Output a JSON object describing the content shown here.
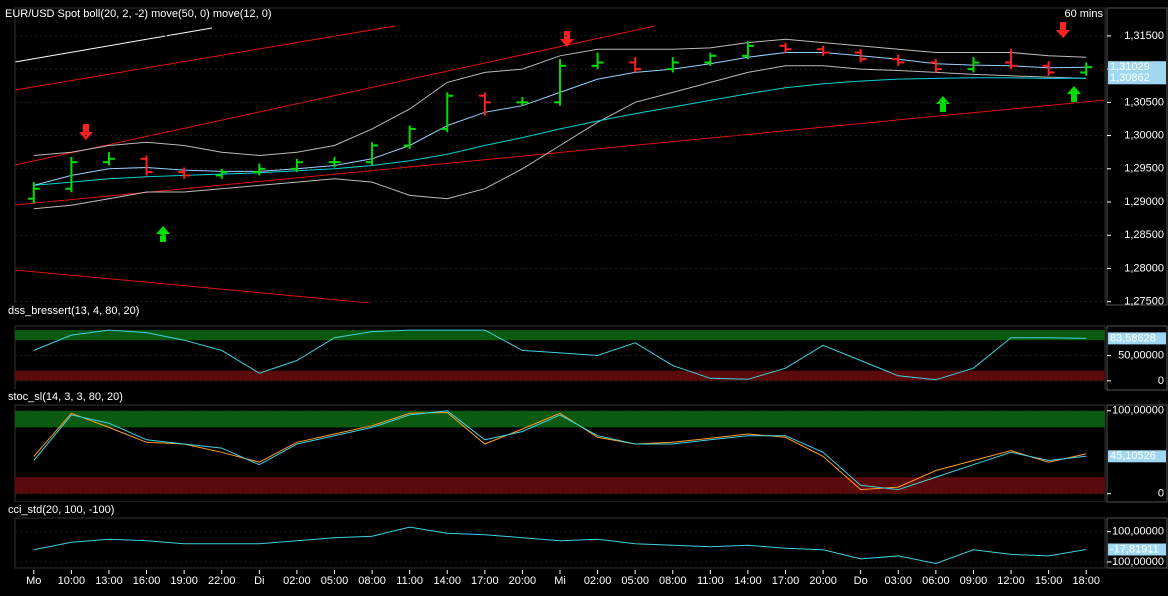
{
  "chart_data": [
    {
      "type": "ohlc",
      "title": "EUR/USD Spot boll(20, 2, -2) move(50, 0) move(12, 0)",
      "subtitle": "60 mins",
      "categories": [
        "Mo",
        "10:00",
        "13:00",
        "16:00",
        "19:00",
        "22:00",
        "Di",
        "02:00",
        "05:00",
        "08:00",
        "11:00",
        "14:00",
        "17:00",
        "20:00",
        "Mi",
        "02:00",
        "05:00",
        "08:00",
        "11:00",
        "14:00",
        "17:00",
        "20:00",
        "Do",
        "03:00",
        "06:00",
        "09:00",
        "12:00",
        "15:00",
        "18:00"
      ],
      "open": [
        1.2905,
        1.292,
        1.296,
        1.2965,
        1.2945,
        1.294,
        1.2945,
        1.295,
        1.296,
        1.296,
        1.2985,
        1.301,
        1.306,
        1.305,
        1.305,
        1.3105,
        1.311,
        1.31,
        1.311,
        1.312,
        1.3135,
        1.313,
        1.3125,
        1.3115,
        1.311,
        1.31,
        1.311,
        1.3105,
        1.3095
      ],
      "high": [
        1.293,
        1.2968,
        1.2975,
        1.297,
        1.2952,
        1.295,
        1.2958,
        1.2965,
        1.2968,
        1.299,
        1.3015,
        1.3065,
        1.3065,
        1.3058,
        1.3115,
        1.3125,
        1.3118,
        1.3118,
        1.3125,
        1.3142,
        1.314,
        1.3135,
        1.313,
        1.3122,
        1.3115,
        1.3118,
        1.313,
        1.3112,
        1.311
      ],
      "low": [
        1.2898,
        1.2915,
        1.2955,
        1.294,
        1.2935,
        1.2935,
        1.294,
        1.2945,
        1.2952,
        1.2955,
        1.298,
        1.3005,
        1.303,
        1.3045,
        1.3045,
        1.31,
        1.3095,
        1.3095,
        1.3105,
        1.3115,
        1.3125,
        1.312,
        1.311,
        1.3105,
        1.3095,
        1.3095,
        1.31,
        1.309,
        1.309
      ],
      "close": [
        1.292,
        1.296,
        1.2965,
        1.2945,
        1.294,
        1.2945,
        1.295,
        1.296,
        1.296,
        1.2985,
        1.301,
        1.306,
        1.305,
        1.305,
        1.3105,
        1.311,
        1.31,
        1.311,
        1.312,
        1.3135,
        1.313,
        1.3125,
        1.3115,
        1.311,
        1.31,
        1.311,
        1.3105,
        1.3095,
        1.3103
      ],
      "overlays": [
        {
          "color": "#bbbbbb",
          "values": [
            1.297,
            1.2975,
            1.2985,
            1.299,
            1.2985,
            1.2975,
            1.297,
            1.2975,
            1.2985,
            1.301,
            1.304,
            1.308,
            1.3095,
            1.31,
            1.312,
            1.313,
            1.313,
            1.313,
            1.3132,
            1.314,
            1.3145,
            1.314,
            1.3135,
            1.313,
            1.3125,
            1.3125,
            1.3125,
            1.312,
            1.3118
          ]
        },
        {
          "color": "#bbbbbb",
          "values": [
            1.289,
            1.2895,
            1.2905,
            1.2915,
            1.2915,
            1.292,
            1.2925,
            1.293,
            1.2935,
            1.293,
            1.291,
            1.2905,
            1.292,
            1.295,
            1.2985,
            1.302,
            1.305,
            1.3065,
            1.308,
            1.3095,
            1.3105,
            1.3105,
            1.31,
            1.3098,
            1.3095,
            1.3092,
            1.309,
            1.3088,
            1.3086
          ]
        },
        {
          "color": "#00d0d0",
          "values": [
            1.2925,
            1.293,
            1.2935,
            1.2938,
            1.294,
            1.2942,
            1.2944,
            1.2947,
            1.295,
            1.2955,
            1.2962,
            1.2972,
            1.2985,
            1.2997,
            1.301,
            1.3022,
            1.3033,
            1.3043,
            1.3053,
            1.3063,
            1.3072,
            1.3078,
            1.3082,
            1.3085,
            1.3086,
            1.3087,
            1.3087,
            1.3086,
            1.30862
          ]
        },
        {
          "color": "#9ad0ff",
          "values": [
            1.2925,
            1.294,
            1.295,
            1.2952,
            1.2948,
            1.2946,
            1.2946,
            1.295,
            1.2955,
            1.2965,
            1.2985,
            1.3015,
            1.3035,
            1.3045,
            1.3065,
            1.3085,
            1.3095,
            1.31,
            1.3108,
            1.3118,
            1.3125,
            1.3125,
            1.312,
            1.3115,
            1.3108,
            1.3106,
            1.3105,
            1.3102,
            1.31029
          ]
        }
      ],
      "last_labels": [
        {
          "value": 1.31029,
          "label": "1,31029"
        },
        {
          "value": 1.30862,
          "label": "1,30862"
        }
      ],
      "ylim": [
        1.2745,
        1.3192
      ],
      "yticks": [
        {
          "value": 1.275,
          "label": "1,27500"
        },
        {
          "value": 1.28,
          "label": "1,28000"
        },
        {
          "value": 1.285,
          "label": "1,28500"
        },
        {
          "value": 1.29,
          "label": "1,29000"
        },
        {
          "value": 1.295,
          "label": "1,29500"
        },
        {
          "value": 1.3,
          "label": "1,30000"
        },
        {
          "value": 1.305,
          "label": "1,30500"
        },
        {
          "value": 1.31,
          "label": "1,31000"
        },
        {
          "value": 1.315,
          "label": "1,31500"
        }
      ],
      "up_color": "#00dd00",
      "down_color": "#ff2020"
    },
    {
      "type": "line",
      "title": "dss_bressert(13, 4, 80, 20)",
      "ylim": [
        -18,
        108
      ],
      "yticks": [
        {
          "value": 50,
          "label": "50,00000"
        },
        0
      ],
      "bands": [
        {
          "range": [
            80,
            100
          ],
          "color": "#0a5a10"
        },
        {
          "range": [
            0,
            20
          ],
          "color": "#5a0a0a"
        }
      ],
      "series": [
        {
          "color": "#40d0e0",
          "values": [
            60,
            90,
            100,
            95,
            80,
            60,
            15,
            40,
            85,
            97,
            100,
            100,
            100,
            60,
            55,
            50,
            75,
            30,
            5,
            3,
            25,
            70,
            40,
            10,
            2,
            25,
            85,
            85,
            83.58628
          ]
        }
      ],
      "last_labels": [
        {
          "value": 83.58628,
          "label": "83,58628"
        }
      ]
    },
    {
      "type": "line",
      "title": "stoc_sl(14, 3, 3, 80, 20)",
      "ylim": [
        -10,
        107
      ],
      "yticks": [
        {
          "value": 100,
          "label": "100,00000"
        },
        0
      ],
      "bands": [
        {
          "range": [
            80,
            100
          ],
          "color": "#0a5a10"
        },
        {
          "range": [
            0,
            20
          ],
          "color": "#5a0a0a"
        }
      ],
      "series": [
        {
          "color": "#ff9a20",
          "values": [
            45,
            97,
            80,
            62,
            60,
            50,
            38,
            62,
            72,
            82,
            97,
            98,
            60,
            78,
            97,
            68,
            60,
            62,
            67,
            72,
            68,
            45,
            5,
            8,
            28,
            40,
            52,
            38,
            48
          ]
        },
        {
          "color": "#40d0e0",
          "values": [
            40,
            95,
            85,
            65,
            60,
            55,
            35,
            60,
            70,
            80,
            95,
            100,
            65,
            75,
            95,
            70,
            60,
            60,
            65,
            70,
            70,
            50,
            10,
            5,
            20,
            35,
            50,
            40,
            45.10526
          ]
        }
      ],
      "last_labels": [
        {
          "value": 45.10526,
          "label": "45,10526"
        }
      ]
    },
    {
      "type": "line",
      "title": "cci_std(20, 100, -100)",
      "ylim": [
        -140,
        190
      ],
      "yticks": [
        {
          "value": 100,
          "label": "100,00000"
        },
        {
          "value": -100,
          "label": "-100,00000"
        }
      ],
      "series": [
        {
          "color": "#40d0e0",
          "values": [
            -20,
            30,
            50,
            40,
            20,
            20,
            20,
            40,
            60,
            70,
            130,
            90,
            80,
            60,
            40,
            50,
            20,
            10,
            0,
            10,
            -10,
            -20,
            -80,
            -60,
            -110,
            -20,
            -50,
            -60,
            -17.81911
          ]
        }
      ],
      "last_labels": [
        {
          "value": -17.81911,
          "label": "-17,81911"
        }
      ]
    }
  ]
}
